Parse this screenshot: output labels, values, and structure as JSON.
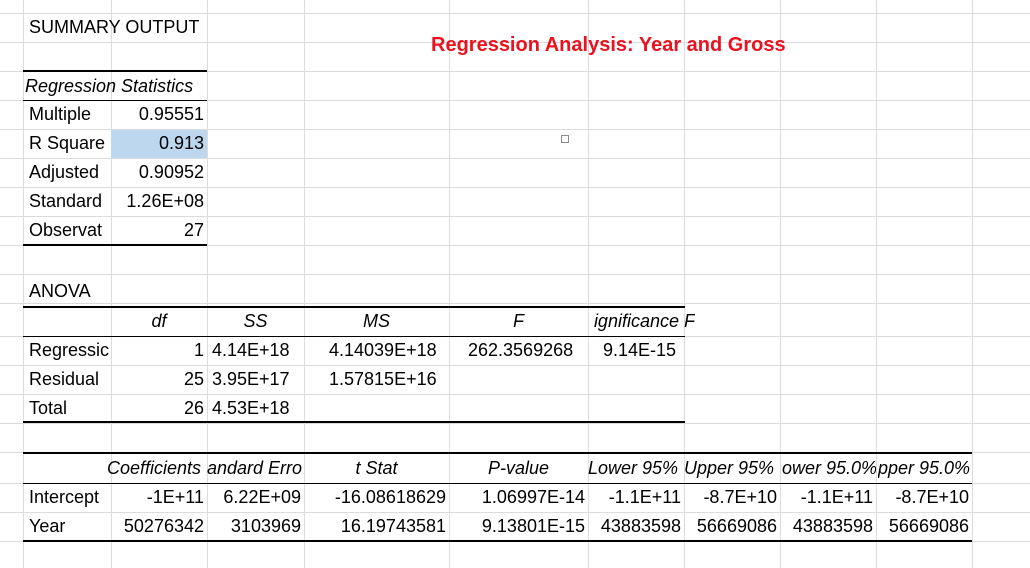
{
  "summary_title": "SUMMARY OUTPUT",
  "chart_title": "Regression Analysis:  Year and Gross",
  "regression_statistics": {
    "header": "Regression Statistics",
    "rows": [
      {
        "label": "Multiple",
        "value": "0.95551"
      },
      {
        "label": "R Square",
        "value": "0.913"
      },
      {
        "label": "Adjusted",
        "value": "0.90952"
      },
      {
        "label": "Standard",
        "value": "1.26E+08"
      },
      {
        "label": "Observat",
        "value": "27"
      }
    ]
  },
  "anova": {
    "title": "ANOVA",
    "headers": [
      "df",
      "SS",
      "MS",
      "F",
      "ignificance F"
    ],
    "rows": [
      {
        "label": "Regressic",
        "df": "1",
        "ss": "4.14E+18",
        "ms": "4.14039E+18",
        "f": "262.3569268",
        "sig": "9.14E-15"
      },
      {
        "label": "Residual",
        "df": "25",
        "ss": "3.95E+17",
        "ms": "1.57815E+16",
        "f": "",
        "sig": ""
      },
      {
        "label": "Total",
        "df": "26",
        "ss": "4.53E+18",
        "ms": "",
        "f": "",
        "sig": ""
      }
    ]
  },
  "coefficients": {
    "headers": [
      "Coefficients",
      "andard Erro",
      "t Stat",
      "P-value",
      "Lower 95%",
      "Upper 95%",
      "ower 95.0%",
      "pper 95.0%"
    ],
    "rows": [
      {
        "label": "Intercept",
        "values": [
          "-1E+11",
          "6.22E+09",
          "-16.08618629",
          "1.06997E-14",
          "-1.1E+11",
          "-8.7E+10",
          "-1.1E+11",
          "-8.7E+10"
        ]
      },
      {
        "label": "Year",
        "values": [
          "50276342",
          "3103969",
          "16.19743581",
          "9.13801E-15",
          "43883598",
          "56669086",
          "43883598",
          "56669086"
        ]
      }
    ]
  },
  "colors": {
    "title": "#e8131f",
    "selection": "#bdd7ee",
    "grid": "#dadcdf"
  }
}
